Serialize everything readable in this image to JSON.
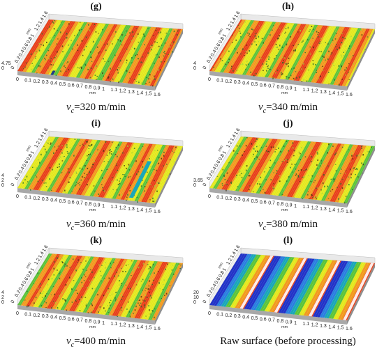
{
  "panels": [
    {
      "label": "(g)",
      "caption_value": "=320 m/min",
      "z_ticks": [
        "4.75",
        "0"
      ],
      "texture": "machined",
      "cyan": false
    },
    {
      "label": "(h)",
      "caption_value": "=340 m/min",
      "z_ticks": [
        "4",
        "0"
      ],
      "texture": "machined",
      "cyan": false
    },
    {
      "label": "(i)",
      "caption_value": "=360 m/min",
      "z_ticks": [
        "4",
        "2",
        "0"
      ],
      "texture": "machined",
      "cyan": true
    },
    {
      "label": "(j)",
      "caption_value": "=380 m/min",
      "z_ticks": [
        "3.65",
        "0"
      ],
      "texture": "machined",
      "cyan": false
    },
    {
      "label": "(k)",
      "caption_value": "=400 m/min",
      "z_ticks": [
        "4",
        "2",
        "0"
      ],
      "texture": "machined",
      "cyan": false
    },
    {
      "label": "(l)",
      "caption_text": "Raw surface (before processing)",
      "z_ticks": [
        "20",
        "10",
        "0"
      ],
      "texture": "raw",
      "cyan": false
    }
  ],
  "velocity_symbol": "v",
  "velocity_subscript": "c",
  "x_ticks": [
    "0",
    "0.1",
    "0.2",
    "0.3",
    "0.4",
    "0.5",
    "0.6",
    "0.7",
    "0.8",
    "0.9",
    "1",
    "1.1",
    "1.2",
    "1.3",
    "1.4",
    "1.5",
    "1.6"
  ],
  "y_ticks": [
    "0",
    "0.2",
    "0.4",
    "0.6",
    "0.8",
    "1",
    "1.2",
    "1.4",
    "1.6"
  ],
  "unit_label": "mm",
  "colors": {
    "red": "#e8401a",
    "orange": "#f29a1f",
    "yellow": "#e4e81e",
    "green": "#5cc43a",
    "cyan": "#1aa7b8",
    "blue": "#2233c8",
    "base": "#a8a8a8"
  }
}
